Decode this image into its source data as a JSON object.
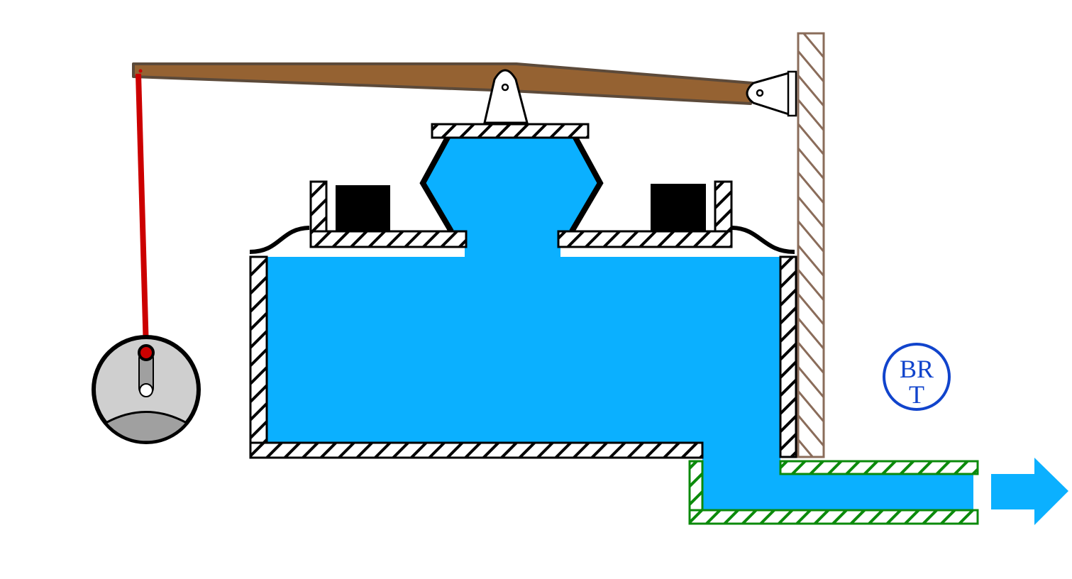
{
  "diagram": {
    "colors": {
      "water": "#0bb0ff",
      "lever": "#956232",
      "lever_outline": "#5c4a3a",
      "rod": "#cc0000",
      "wall_hatch": "#8a6c5a",
      "outlet_hatch": "#0b8a0b",
      "hatch": "#000000",
      "float": "#cfcfcf",
      "float_bottom": "#a0a0a0",
      "magnet": "#000000",
      "logo": "#1144cc",
      "arrow": "#0bb0ff"
    },
    "logo": {
      "top_text": "BR",
      "bottom_text": "T"
    },
    "components": [
      "lever",
      "pivot-bracket",
      "wall",
      "float",
      "float-rod",
      "tank",
      "diaphragm-chamber",
      "magnets",
      "outlet-pipe",
      "flow-arrow"
    ]
  }
}
